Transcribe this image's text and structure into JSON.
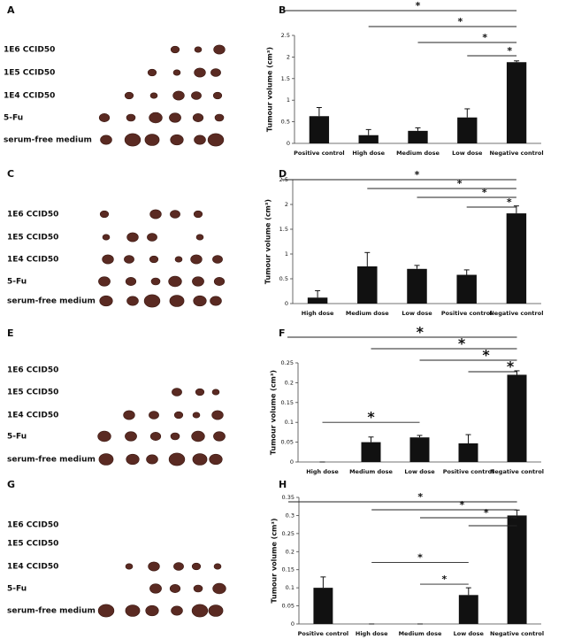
{
  "photo_panels": [
    {
      "panel": "A",
      "rows": [
        "1E6 CCID50",
        "1E5 CCID50",
        "1E4 CCID50",
        "5-Fu",
        "serum-free medium"
      ]
    },
    {
      "panel": "C",
      "rows": [
        "1E6 CCID50",
        "1E5 CCID50",
        "1E4 CCID50",
        "5-Fu",
        "serum-free medium"
      ]
    },
    {
      "panel": "E",
      "rows": [
        "1E6 CCID50",
        "1E5 CCID50",
        "1E4 CCID50",
        "5-Fu",
        "serum-free medium"
      ]
    },
    {
      "panel": "G",
      "rows": [
        "1E6 CCID50",
        "1E5 CCID50",
        "1E4 CCID50",
        "5-Fu",
        "serum-free medium"
      ]
    }
  ],
  "chart_data": [
    {
      "panel": "B",
      "type": "bar",
      "ylabel": "Tumour volume (cm³)",
      "color": "#111111",
      "categories": [
        "Positive  control",
        "High dose",
        "Medium dose",
        "Low dose",
        "Negative control"
      ],
      "values": [
        0.63,
        0.19,
        0.29,
        0.6,
        1.88
      ],
      "errors": [
        0.2,
        0.13,
        0.07,
        0.2,
        0.03
      ],
      "ylim": [
        0,
        2.5
      ],
      "yticks": [
        0,
        0.5,
        1,
        1.5,
        2,
        2.5
      ],
      "significance": [
        {
          "from": 0,
          "to": 4,
          "label": "*"
        },
        {
          "from": 1,
          "to": 4,
          "label": "*"
        },
        {
          "from": 2,
          "to": 4,
          "label": "*"
        },
        {
          "from": 3,
          "to": 4,
          "label": "*"
        }
      ]
    },
    {
      "panel": "D",
      "type": "bar",
      "ylabel": "Tumour volume (cm³)",
      "color": "#111111",
      "categories": [
        "High dose",
        "Medium dose",
        "Low dose",
        "Positive  control",
        "Negative control"
      ],
      "values": [
        0.12,
        0.75,
        0.7,
        0.58,
        1.82
      ],
      "errors": [
        0.14,
        0.28,
        0.07,
        0.1,
        0.15
      ],
      "ylim": [
        0,
        2.5
      ],
      "yticks": [
        0,
        0.5,
        1,
        1.5,
        2,
        2.5
      ],
      "significance": [
        {
          "from": 0,
          "to": 4,
          "label": "*"
        },
        {
          "from": 1,
          "to": 4,
          "label": "*"
        },
        {
          "from": 2,
          "to": 4,
          "label": "*"
        },
        {
          "from": 3,
          "to": 4,
          "label": "*"
        }
      ]
    },
    {
      "panel": "F",
      "type": "bar",
      "ylabel": "Tumour volume (cm³)",
      "color": "#111111",
      "categories": [
        "High dose",
        "Medium dose",
        "Low dose",
        "Positive  control",
        "Negative control"
      ],
      "values": [
        0,
        0.05,
        0.062,
        0.047,
        0.22
      ],
      "errors": [
        0,
        0.013,
        0.005,
        0.022,
        0.01
      ],
      "ylim": [
        0,
        0.25
      ],
      "yticks": [
        0,
        0.05,
        0.1,
        0.15,
        0.2,
        0.25
      ],
      "significance": [
        {
          "from": 0,
          "to": 4,
          "label": "*"
        },
        {
          "from": 1,
          "to": 4,
          "label": "*"
        },
        {
          "from": 2,
          "to": 4,
          "label": "*"
        },
        {
          "from": 3,
          "to": 4,
          "label": "*"
        },
        {
          "from": 0,
          "to": 2,
          "label": "*",
          "y": 0.1
        }
      ]
    },
    {
      "panel": "H",
      "type": "bar",
      "ylabel": "Tumour volume (cm³)",
      "color": "#111111",
      "categories": [
        "Positive  control",
        "High dose",
        "Medium dose",
        "Low dose",
        "Negative control"
      ],
      "values": [
        0.1,
        0,
        0,
        0.08,
        0.3
      ],
      "errors": [
        0.03,
        0,
        0,
        0.02,
        0.015
      ],
      "ylim": [
        0,
        0.35
      ],
      "yticks": [
        0,
        0.05,
        0.1,
        0.15,
        0.2,
        0.25,
        0.3,
        0.35
      ],
      "significance": [
        {
          "from": 0,
          "to": 4,
          "label": "*"
        },
        {
          "from": 1,
          "to": 4,
          "label": "*"
        },
        {
          "from": 2,
          "to": 4,
          "label": "*"
        },
        {
          "from": 3,
          "to": 4,
          "label": "*"
        },
        {
          "from": 1,
          "to": 3,
          "label": "*",
          "y": 0.17
        },
        {
          "from": 2,
          "to": 3,
          "label": "*",
          "y": 0.11
        }
      ]
    }
  ]
}
